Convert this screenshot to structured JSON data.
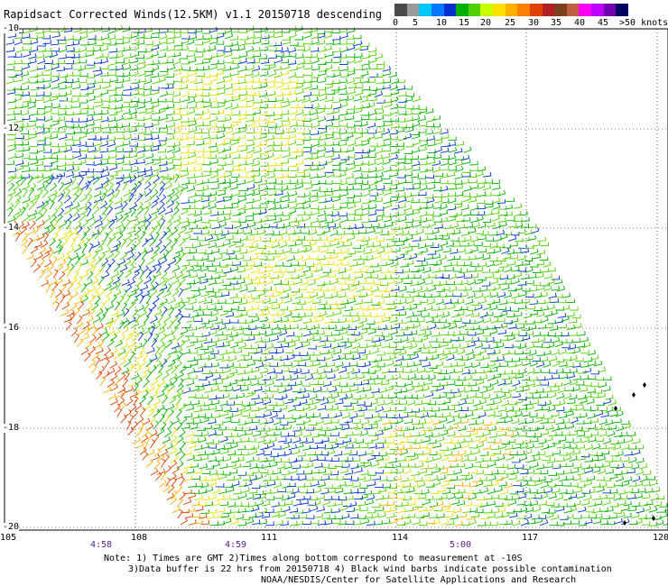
{
  "title": "Rapidsact Corrected Winds(12.5KM) v1.1 20150718 descending",
  "legend": {
    "labels": [
      "0",
      "5",
      "10",
      "15",
      "20",
      "25",
      "30",
      "35",
      "40",
      "45",
      ">50 knots"
    ],
    "colors": [
      "#4a4a4a",
      "#9a9a9a",
      "#00c8ff",
      "#0078ff",
      "#0030d0",
      "#00b000",
      "#50d000",
      "#c8ff00",
      "#ffe000",
      "#ffb000",
      "#ff8000",
      "#e04000",
      "#b02020",
      "#804020",
      "#c06040",
      "#ff00ff",
      "#c000ff",
      "#7000b0",
      "#000060"
    ]
  },
  "axes": {
    "lon_labels": [
      "105",
      "108",
      "111",
      "114",
      "117",
      "120"
    ],
    "lat_labels": [
      "-10",
      "-12",
      "-14",
      "-16",
      "-18",
      "-20"
    ],
    "time_labels": [
      "4:58",
      "4:59",
      "5:00"
    ]
  },
  "notes": {
    "line1": "Note: 1) Times are GMT 2)Times along bottom correspond to measurement at -10S",
    "line2": "3)Data buffer is 22 hrs from 20150718 4) Black wind barbs indicate possible contamination",
    "line3": "NOAA/NESDIS/Center for Satellite Applications and Research"
  },
  "wind_colors": {
    "low": "#0030d0",
    "mid": "#00b000",
    "midhigh": "#50d000",
    "high": "#e8e000",
    "higher": "#ffb000",
    "highest": "#e04000"
  }
}
